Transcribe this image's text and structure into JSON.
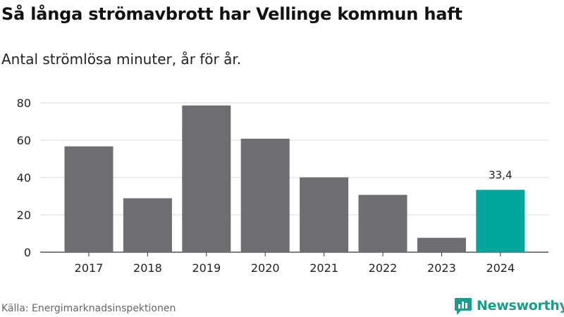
{
  "header": {
    "title": "Så långa strömavbrott har Vellinge kommun haft",
    "subtitle": "Antal strömlösa minuter, år för år."
  },
  "footer": {
    "source": "Källa: Energimarknadsinspektionen",
    "logo_text": "Newsworthy"
  },
  "colors": {
    "bar": "#6e6d71",
    "highlight": "#00a59b",
    "grid": "#d9d9d9",
    "axis": "#333333",
    "logo": "#1a9c8c"
  },
  "chart_data": {
    "type": "bar",
    "categories": [
      "2017",
      "2018",
      "2019",
      "2020",
      "2021",
      "2022",
      "2023",
      "2024"
    ],
    "values": [
      56.7,
      28.9,
      78.6,
      60.8,
      40.1,
      30.7,
      7.7,
      33.4
    ],
    "highlight_index": 7,
    "data_labels": [
      {
        "index": 7,
        "text": "33,4"
      }
    ],
    "ylim": [
      0,
      80
    ],
    "yticks": [
      0,
      20,
      40,
      60,
      80
    ],
    "grid": true
  }
}
